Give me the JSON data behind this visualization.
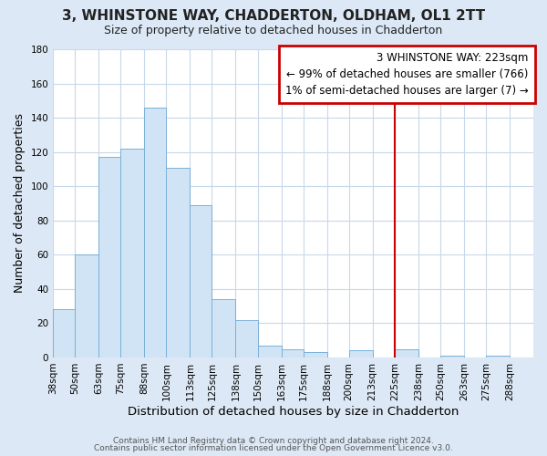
{
  "title": "3, WHINSTONE WAY, CHADDERTON, OLDHAM, OL1 2TT",
  "subtitle": "Size of property relative to detached houses in Chadderton",
  "xlabel": "Distribution of detached houses by size in Chadderton",
  "ylabel": "Number of detached properties",
  "footer_line1": "Contains HM Land Registry data © Crown copyright and database right 2024.",
  "footer_line2": "Contains public sector information licensed under the Open Government Licence v3.0.",
  "bin_edges": [
    38,
    50,
    63,
    75,
    88,
    100,
    113,
    125,
    138,
    150,
    163,
    175,
    188,
    200,
    213,
    225,
    238,
    250,
    263,
    275,
    288
  ],
  "bar_heights": [
    28,
    60,
    117,
    122,
    146,
    111,
    89,
    34,
    22,
    7,
    5,
    3,
    0,
    4,
    0,
    5,
    0,
    1,
    0,
    1
  ],
  "bar_color": "#d0e4f5",
  "bar_edge_color": "#7ab0d8",
  "vline_x": 225,
  "vline_color": "#cc0000",
  "ylim": [
    0,
    180
  ],
  "yticks": [
    0,
    20,
    40,
    60,
    80,
    100,
    120,
    140,
    160,
    180
  ],
  "legend_title": "3 WHINSTONE WAY: 223sqm",
  "legend_line1": "← 99% of detached houses are smaller (766)",
  "legend_line2": "1% of semi-detached houses are larger (7) →",
  "legend_border_color": "#cc0000",
  "figure_bg_color": "#dce8f5",
  "plot_bg_color": "#ffffff",
  "grid_color": "#c8d8ea",
  "title_fontsize": 11,
  "subtitle_fontsize": 9,
  "ylabel_fontsize": 9,
  "xlabel_fontsize": 9.5,
  "tick_fontsize": 7.5,
  "footer_fontsize": 6.5,
  "legend_fontsize": 8.5
}
